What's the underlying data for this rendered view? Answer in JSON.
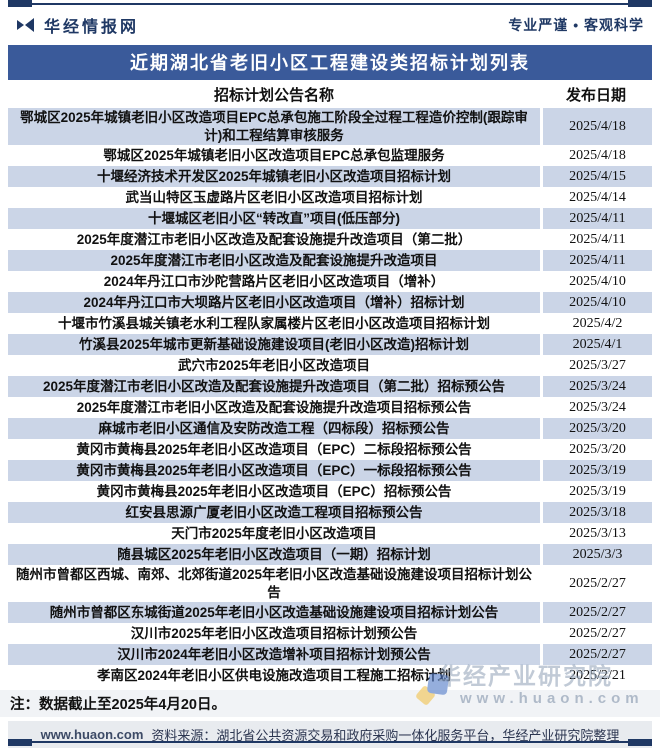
{
  "brand": {
    "logo": "华经情报网",
    "tagline": "专业严谨 • 客观科学"
  },
  "title": "近期湖北省老旧小区工程建设类招标计划列表",
  "table": {
    "name_header": "招标计划公告名称",
    "date_header": "发布日期",
    "rows": [
      {
        "name": "鄂城区2025年城镇老旧小区改造项目EPC总承包施工阶段全过程工程造价控制(跟踪审计)和工程结算审核服务",
        "date": "2025/4/18"
      },
      {
        "name": "鄂城区2025年城镇老旧小区改造项目EPC总承包监理服务",
        "date": "2025/4/18"
      },
      {
        "name": "十堰经济技术开发区2025年城镇老旧小区改造项目招标计划",
        "date": "2025/4/15"
      },
      {
        "name": "武当山特区玉虚路片区老旧小区改造项目招标计划",
        "date": "2025/4/14"
      },
      {
        "name": "十堰城区老旧小区“转改直”项目(低压部分)",
        "date": "2025/4/11"
      },
      {
        "name": "2025年度潜江市老旧小区改造及配套设施提升改造项目（第二批）",
        "date": "2025/4/11"
      },
      {
        "name": "2025年度潜江市老旧小区改造及配套设施提升改造项目",
        "date": "2025/4/11"
      },
      {
        "name": "2024年丹江口市沙陀营路片区老旧小区改造项目（增补）",
        "date": "2025/4/10"
      },
      {
        "name": "2024年丹江口市大坝路片区老旧小区改造项目（增补）招标计划",
        "date": "2025/4/10"
      },
      {
        "name": "十堰市竹溪县城关镇老水利工程队家属楼片区老旧小区改造项目招标计划",
        "date": "2025/4/2"
      },
      {
        "name": "竹溪县2025年城市更新基础设施建设项目(老旧小区改造)招标计划",
        "date": "2025/4/1"
      },
      {
        "name": "武穴市2025年老旧小区改造项目",
        "date": "2025/3/27"
      },
      {
        "name": "2025年度潜江市老旧小区改造及配套设施提升改造项目（第二批）招标预公告",
        "date": "2025/3/24"
      },
      {
        "name": "2025年度潜江市老旧小区改造及配套设施提升改造项目招标预公告",
        "date": "2025/3/24"
      },
      {
        "name": "麻城市老旧小区通信及安防改造工程（四标段）招标预公告",
        "date": "2025/3/20"
      },
      {
        "name": "黄冈市黄梅县2025年老旧小区改造项目（EPC）二标段招标预公告",
        "date": "2025/3/20"
      },
      {
        "name": "黄冈市黄梅县2025年老旧小区改造项目（EPC）一标段招标预公告",
        "date": "2025/3/19"
      },
      {
        "name": "黄冈市黄梅县2025年老旧小区改造项目（EPC）招标预公告",
        "date": "2025/3/19"
      },
      {
        "name": "红安县思源广厦老旧小区改造工程项目招标预公告",
        "date": "2025/3/18"
      },
      {
        "name": "天门市2025年度老旧小区改造项目",
        "date": "2025/3/13"
      },
      {
        "name": "随县城区2025年老旧小区改造项目（一期）招标计划",
        "date": "2025/3/3"
      },
      {
        "name": "随州市曾都区西城、南郊、北郊街道2025年老旧小区改造基础设施建设项目招标计划公告",
        "date": "2025/2/27"
      },
      {
        "name": "随州市曾都区东城街道2025年老旧小区改造基础设施建设项目招标计划公告",
        "date": "2025/2/27"
      },
      {
        "name": "汉川市2025年老旧小区改造项目招标计划预公告",
        "date": "2025/2/27"
      },
      {
        "name": "汉川市2024年老旧小区改造增补项目招标计划预公告",
        "date": "2025/2/27"
      },
      {
        "name": "孝南区2024年老旧小区供电设施改造项目工程施工招标计划",
        "date": "2025/2/21"
      }
    ]
  },
  "note": "注：数据截止至2025年4月20日。",
  "footer": {
    "site": "www.huaon.com",
    "source": "资料来源：湖北省公共资源交易和政府采购一体化服务平台，华经产业研究院整理"
  },
  "watermark": {
    "line1": "华经产业研究院",
    "line2": "www.huaon.com"
  },
  "colors": {
    "navy": "#1F3864",
    "title_bar": "#3A5A9A",
    "row_alt": "#CBD5E7",
    "note_bar": "#F1F3F6",
    "footer_bar": "#E8EBEF"
  }
}
